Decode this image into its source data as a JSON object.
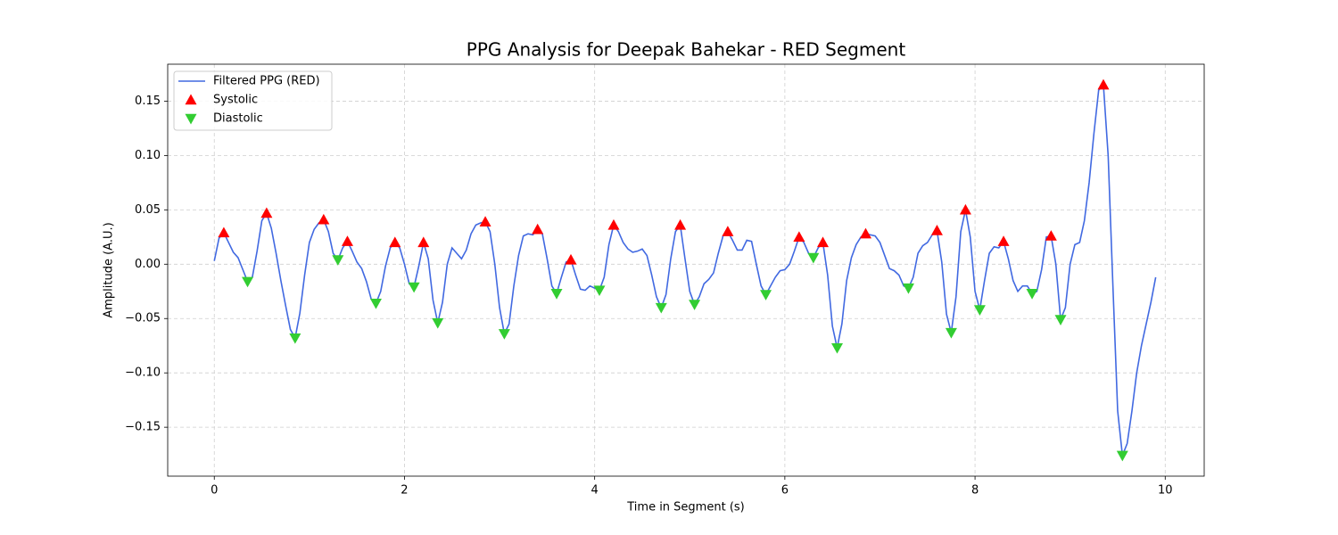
{
  "chart_data": {
    "type": "line",
    "title": "PPG Analysis for Deepak Bahekar - RED Segment",
    "xlabel": "Time in Segment (s)",
    "ylabel": "Amplitude (A.U.)",
    "xlim": [
      -0.49,
      10.41
    ],
    "ylim": [
      -0.195,
      0.184
    ],
    "xticks": [
      0,
      2,
      4,
      6,
      8,
      10
    ],
    "yticks": [
      {
        "value": -0.15,
        "label": "−0.15"
      },
      {
        "value": -0.1,
        "label": "−0.10"
      },
      {
        "value": -0.05,
        "label": "−0.05"
      },
      {
        "value": 0,
        "label": "0.00"
      },
      {
        "value": 0.05,
        "label": "0.05"
      },
      {
        "value": 0.1,
        "label": "0.10"
      },
      {
        "value": 0.15,
        "label": "0.15"
      }
    ],
    "grid": true,
    "legend": "upper left",
    "series": [
      {
        "name": "Filtered PPG (RED)",
        "type": "line",
        "color": "#4169e1",
        "x": [
          0,
          0.05,
          0.1,
          0.15,
          0.2,
          0.25,
          0.3,
          0.35,
          0.4,
          0.45,
          0.5,
          0.55,
          0.6,
          0.65,
          0.7,
          0.75,
          0.8,
          0.85,
          0.9,
          0.95,
          1.0,
          1.05,
          1.1,
          1.15,
          1.2,
          1.25,
          1.3,
          1.35,
          1.4,
          1.45,
          1.5,
          1.55,
          1.6,
          1.65,
          1.7,
          1.75,
          1.8,
          1.85,
          1.9,
          1.95,
          2.0,
          2.05,
          2.1,
          2.15,
          2.2,
          2.25,
          2.3,
          2.35,
          2.4,
          2.45,
          2.5,
          2.55,
          2.6,
          2.65,
          2.7,
          2.75,
          2.8,
          2.85,
          2.9,
          2.95,
          3.0,
          3.05,
          3.1,
          3.15,
          3.2,
          3.25,
          3.3,
          3.35,
          3.4,
          3.45,
          3.5,
          3.55,
          3.6,
          3.65,
          3.7,
          3.75,
          3.8,
          3.85,
          3.9,
          3.95,
          4.0,
          4.05,
          4.1,
          4.15,
          4.2,
          4.25,
          4.3,
          4.35,
          4.4,
          4.45,
          4.5,
          4.55,
          4.6,
          4.65,
          4.7,
          4.75,
          4.8,
          4.85,
          4.9,
          4.95,
          5.0,
          5.05,
          5.1,
          5.15,
          5.2,
          5.25,
          5.3,
          5.35,
          5.4,
          5.45,
          5.5,
          5.55,
          5.6,
          5.65,
          5.7,
          5.75,
          5.8,
          5.85,
          5.9,
          5.95,
          6.0,
          6.05,
          6.1,
          6.15,
          6.2,
          6.25,
          6.3,
          6.35,
          6.4,
          6.45,
          6.5,
          6.55,
          6.6,
          6.65,
          6.7,
          6.75,
          6.8,
          6.85,
          6.9,
          6.95,
          7.0,
          7.05,
          7.1,
          7.15,
          7.2,
          7.25,
          7.3,
          7.35,
          7.4,
          7.45,
          7.5,
          7.55,
          7.6,
          7.65,
          7.7,
          7.75,
          7.8,
          7.85,
          7.9,
          7.95,
          8.0,
          8.05,
          8.1,
          8.15,
          8.2,
          8.25,
          8.3,
          8.35,
          8.4,
          8.45,
          8.5,
          8.55,
          8.6,
          8.65,
          8.7,
          8.75,
          8.8,
          8.85,
          8.9,
          8.95,
          9.0,
          9.05,
          9.1,
          9.15,
          9.2,
          9.25,
          9.3,
          9.35,
          9.4,
          9.45,
          9.5,
          9.55,
          9.6,
          9.65,
          9.7,
          9.75,
          9.8,
          9.85,
          9.9
        ],
        "values": [
          0.003,
          0.024,
          0.029,
          0.02,
          0.011,
          0.006,
          -0.005,
          -0.016,
          -0.012,
          0.012,
          0.04,
          0.047,
          0.033,
          0.01,
          -0.015,
          -0.038,
          -0.06,
          -0.068,
          -0.045,
          -0.01,
          0.02,
          0.032,
          0.038,
          0.041,
          0.03,
          0.01,
          0.004,
          0.015,
          0.021,
          0.012,
          0.002,
          -0.004,
          -0.016,
          -0.032,
          -0.036,
          -0.025,
          -0.002,
          0.015,
          0.02,
          0.015,
          0.0,
          -0.018,
          -0.021,
          -0.002,
          0.02,
          0.005,
          -0.033,
          -0.054,
          -0.035,
          0.0,
          0.015,
          0.01,
          0.005,
          0.013,
          0.028,
          0.036,
          0.038,
          0.039,
          0.03,
          0.0,
          -0.04,
          -0.064,
          -0.055,
          -0.02,
          0.008,
          0.026,
          0.028,
          0.027,
          0.032,
          0.028,
          0.005,
          -0.02,
          -0.027,
          -0.012,
          0.002,
          0.004,
          -0.01,
          -0.023,
          -0.024,
          -0.02,
          -0.022,
          -0.024,
          -0.012,
          0.018,
          0.036,
          0.03,
          0.02,
          0.014,
          0.011,
          0.012,
          0.014,
          0.008,
          -0.01,
          -0.03,
          -0.04,
          -0.028,
          0.005,
          0.03,
          0.036,
          0.005,
          -0.025,
          -0.037,
          -0.03,
          -0.018,
          -0.014,
          -0.008,
          0.01,
          0.026,
          0.03,
          0.022,
          0.013,
          0.013,
          0.022,
          0.021,
          0.0,
          -0.02,
          -0.028,
          -0.02,
          -0.012,
          -0.006,
          -0.005,
          0.0,
          0.012,
          0.025,
          0.02,
          0.01,
          0.006,
          0.015,
          0.02,
          -0.01,
          -0.057,
          -0.077,
          -0.055,
          -0.015,
          0.006,
          0.018,
          0.025,
          0.028,
          0.027,
          0.026,
          0.02,
          0.008,
          -0.004,
          -0.006,
          -0.01,
          -0.02,
          -0.022,
          -0.012,
          0.01,
          0.017,
          0.02,
          0.027,
          0.031,
          0.002,
          -0.046,
          -0.063,
          -0.03,
          0.03,
          0.05,
          0.025,
          -0.025,
          -0.042,
          -0.015,
          0.01,
          0.016,
          0.015,
          0.021,
          0.005,
          -0.015,
          -0.025,
          -0.02,
          -0.02,
          -0.027,
          -0.025,
          -0.005,
          0.025,
          0.026,
          0.0,
          -0.051,
          -0.04,
          0.0,
          0.018,
          0.02,
          0.04,
          0.075,
          0.12,
          0.16,
          0.165,
          0.1,
          -0.02,
          -0.135,
          -0.176,
          -0.165,
          -0.135,
          -0.1,
          -0.075,
          -0.055,
          -0.035,
          -0.012
        ]
      },
      {
        "name": "Systolic",
        "type": "scatter",
        "marker": "up",
        "color": "#ff0000",
        "x": [
          0.1,
          0.55,
          1.15,
          1.4,
          1.9,
          2.2,
          2.85,
          3.4,
          3.75,
          4.2,
          4.9,
          5.4,
          6.15,
          6.4,
          6.85,
          7.6,
          7.9,
          8.3,
          8.8,
          9.35
        ],
        "values": [
          0.029,
          0.047,
          0.041,
          0.021,
          0.02,
          0.02,
          0.039,
          0.032,
          0.004,
          0.036,
          0.036,
          0.03,
          0.025,
          0.02,
          0.028,
          0.031,
          0.05,
          0.021,
          0.026,
          0.165
        ]
      },
      {
        "name": "Diastolic",
        "type": "scatter",
        "marker": "down",
        "color": "#32cd32",
        "x": [
          0.35,
          0.85,
          1.3,
          1.7,
          2.1,
          2.35,
          3.05,
          3.6,
          4.05,
          4.7,
          5.05,
          5.8,
          6.3,
          6.55,
          7.3,
          7.75,
          8.05,
          8.6,
          8.9,
          9.55
        ],
        "values": [
          -0.016,
          -0.068,
          0.004,
          -0.036,
          -0.021,
          -0.054,
          -0.064,
          -0.027,
          -0.024,
          -0.04,
          -0.037,
          -0.028,
          0.006,
          -0.077,
          -0.022,
          -0.063,
          -0.042,
          -0.027,
          -0.051,
          -0.176
        ]
      }
    ]
  }
}
